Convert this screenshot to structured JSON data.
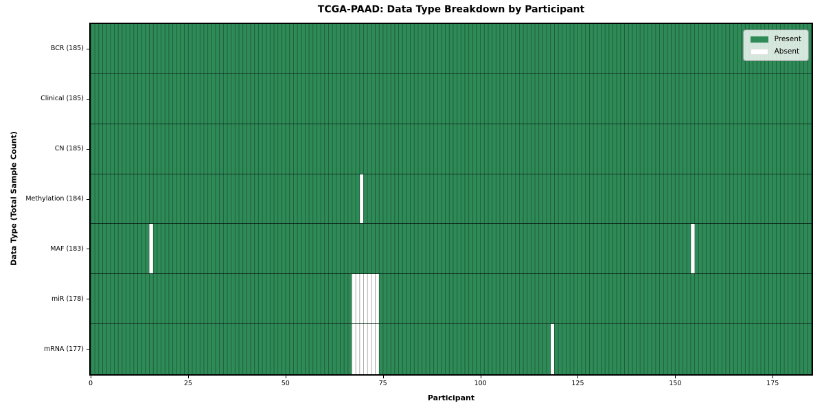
{
  "colors": {
    "present": "#2e8b57",
    "absent": "#ffffff"
  },
  "chart_data": {
    "type": "heatmap",
    "title": "TCGA-PAAD: Data Type Breakdown by Participant",
    "xlabel": "Participant",
    "ylabel": "Data Type (Total Sample Count)",
    "x_axis": {
      "min": 0,
      "max": 185,
      "ticks": [
        0,
        25,
        50,
        75,
        100,
        125,
        150,
        175
      ]
    },
    "legend": {
      "position": "upper right",
      "entries": [
        {
          "label": "Present",
          "color": "#2e8b57"
        },
        {
          "label": "Absent",
          "color": "#ffffff"
        }
      ]
    },
    "rows": [
      {
        "name": "BCR",
        "label": "BCR (185)",
        "total_samples": 185,
        "absent_participants": []
      },
      {
        "name": "Clinical",
        "label": "Clinical (185)",
        "total_samples": 185,
        "absent_participants": []
      },
      {
        "name": "CN",
        "label": "CN (185)",
        "total_samples": 185,
        "absent_participants": []
      },
      {
        "name": "Methylation",
        "label": "Methylation (184)",
        "total_samples": 184,
        "absent_participants": [
          69
        ]
      },
      {
        "name": "MAF",
        "label": "MAF (183)",
        "total_samples": 183,
        "absent_participants": [
          15,
          154
        ]
      },
      {
        "name": "miR",
        "label": "miR (178)",
        "total_samples": 178,
        "absent_participants": [
          67,
          68,
          69,
          70,
          71,
          72,
          73
        ]
      },
      {
        "name": "mRNA",
        "label": "mRNA (177)",
        "total_samples": 177,
        "absent_participants": [
          67,
          68,
          69,
          70,
          71,
          72,
          73,
          118
        ]
      }
    ]
  }
}
